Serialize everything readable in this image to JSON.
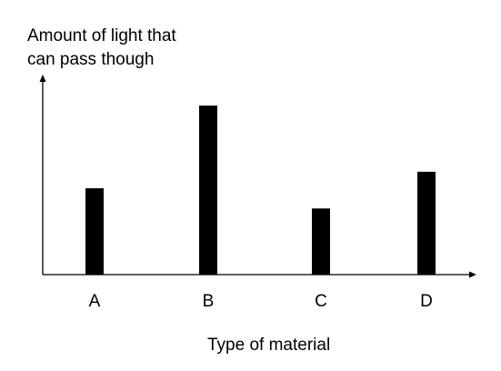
{
  "chart_data": {
    "type": "bar",
    "title": "",
    "ylabel": "Amount of light that\ncan pass though",
    "xlabel": "Type of material",
    "categories": [
      "A",
      "B",
      "C",
      "D"
    ],
    "values": [
      47,
      92,
      36,
      56
    ],
    "ylim": [
      0,
      100
    ],
    "grid": false,
    "legend": "none",
    "bar_color": "#000000",
    "axis_color": "#000000"
  }
}
